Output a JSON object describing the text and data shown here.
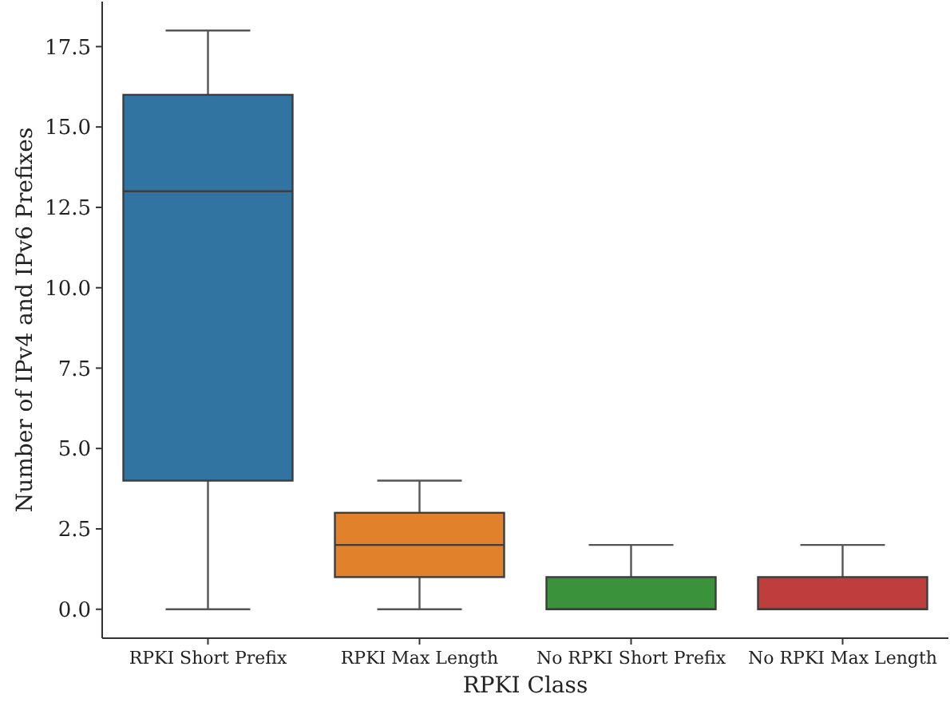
{
  "chart_data": {
    "type": "box",
    "xlabel": "RPKI Class",
    "ylabel": "Number of IPv4 and IPv6 Prefixes",
    "categories": [
      "RPKI Short Prefix",
      "RPKI Max Length",
      "No RPKI Short Prefix",
      "No RPKI Max Length"
    ],
    "colors": [
      "#3274a1",
      "#e1812c",
      "#3a923a",
      "#c03d3e"
    ],
    "boxes": [
      {
        "low": 0,
        "q1": 4,
        "median": 13,
        "q3": 16,
        "high": 18
      },
      {
        "low": 0,
        "q1": 1,
        "median": 2,
        "q3": 3,
        "high": 4
      },
      {
        "low": 0,
        "q1": 0,
        "median": 0,
        "q3": 1,
        "high": 2
      },
      {
        "low": 0,
        "q1": 0,
        "median": 0,
        "q3": 1,
        "high": 2
      }
    ],
    "ylim": [
      -0.9,
      18.9
    ],
    "yticks": [
      {
        "value": 0,
        "label": "0.0"
      },
      {
        "value": 2.5,
        "label": "2.5"
      },
      {
        "value": 5,
        "label": "5.0"
      },
      {
        "value": 7.5,
        "label": "7.5"
      },
      {
        "value": 10,
        "label": "10.0"
      },
      {
        "value": 12.5,
        "label": "12.5"
      },
      {
        "value": 15,
        "label": "15.0"
      },
      {
        "value": 17.5,
        "label": "17.5"
      }
    ]
  }
}
